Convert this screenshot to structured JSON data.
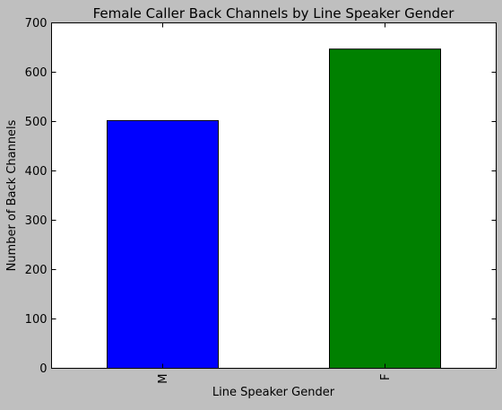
{
  "chart_data": {
    "type": "bar",
    "title": "Female Caller Back Channels by Line Speaker Gender",
    "xlabel": "Line Speaker Gender",
    "ylabel": "Number of Back Channels",
    "categories": [
      "M",
      "F"
    ],
    "values": [
      502,
      647
    ],
    "ylim": [
      0,
      700
    ],
    "yticks": [
      "0",
      "100",
      "200",
      "300",
      "400",
      "500",
      "600",
      "700"
    ],
    "grid": false,
    "legend": "none",
    "colors": [
      "#0000ff",
      "#008000"
    ]
  }
}
